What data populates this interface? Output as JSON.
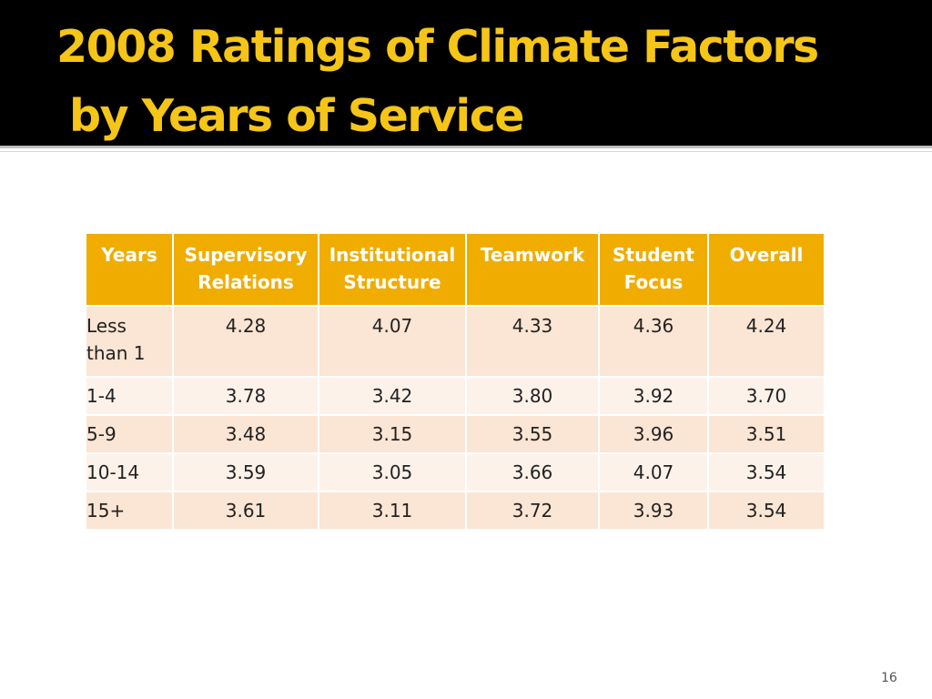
{
  "slide": {
    "title_line1": "2008 Ratings of Climate Factors",
    "title_line2": "by Years of Service",
    "page_number": "16"
  },
  "table": {
    "headers": [
      [
        "Years"
      ],
      [
        "Supervisory",
        "Relations"
      ],
      [
        "Institutional",
        "Structure"
      ],
      [
        "Teamwork"
      ],
      [
        "Student",
        "Focus"
      ],
      [
        "Overall"
      ]
    ],
    "rows": [
      {
        "years": [
          "Less",
          "than 1"
        ],
        "values": [
          "4.28",
          "4.07",
          "4.33",
          "4.36",
          "4.24"
        ]
      },
      {
        "years": [
          "1-4"
        ],
        "values": [
          "3.78",
          "3.42",
          "3.80",
          "3.92",
          "3.70"
        ]
      },
      {
        "years": [
          "5-9"
        ],
        "values": [
          "3.48",
          "3.15",
          "3.55",
          "3.96",
          "3.51"
        ]
      },
      {
        "years": [
          "10-14"
        ],
        "values": [
          "3.59",
          "3.05",
          "3.66",
          "4.07",
          "3.54"
        ]
      },
      {
        "years": [
          "15+"
        ],
        "values": [
          "3.61",
          "3.11",
          "3.72",
          "3.93",
          "3.54"
        ]
      }
    ]
  },
  "colors": {
    "title_text": "#f5c518",
    "header_fill": "#f0ad00",
    "row_odd": "#fbe5d4",
    "row_even": "#fdf2ea"
  }
}
